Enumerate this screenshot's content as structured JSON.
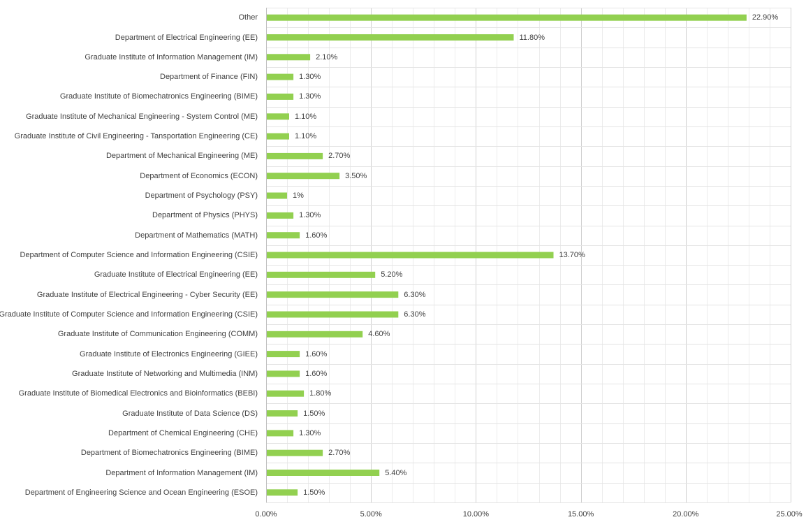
{
  "chart_data": {
    "type": "bar",
    "orientation": "horizontal",
    "title": "",
    "xlabel": "",
    "ylabel": "",
    "xlim": [
      0,
      25
    ],
    "x_ticks": [
      "0.00%",
      "5.00%",
      "10.00%",
      "15.00%",
      "20.00%",
      "25.00%"
    ],
    "grid": true,
    "legend": "none",
    "bar_color": "#92d050",
    "categories": [
      "Other",
      "Department of Electrical Engineering (EE)",
      "Graduate Institute of Information Management (IM)",
      "Department of Finance (FIN)",
      "Graduate Institute of Biomechatronics Engineering (BIME)",
      "Graduate Institute of Mechanical Engineering - System Control (ME)",
      "Graduate Institute of Civil Engineering - Tansportation Engineering (CE)",
      "Department of Mechanical Engineering (ME)",
      "Department of Economics (ECON)",
      "Department of Psychology (PSY)",
      "Department of Physics (PHYS)",
      "Department of Mathematics (MATH)",
      "Department of Computer Science and Information Engineering (CSIE)",
      "Graduate Institute of Electrical Engineering (EE)",
      "Graduate Institute of Electrical Engineering - Cyber Security (EE)",
      "Graduate Institute of Computer Science and Information Engineering (CSIE)",
      "Graduate Institute of Communication Engineering (COMM)",
      "Graduate Institute of Electronics Engineering (GIEE)",
      "Graduate Institute of Networking and Multimedia (INM)",
      "Graduate Institute of Biomedical Electronics and Bioinformatics (BEBI)",
      "Graduate Institute of Data Science (DS)",
      "Department of Chemical Engineering (CHE)",
      "Department of Biomechatronics Engineering (BIME)",
      "Department of Information Management (IM)",
      "Department of Engineering Science and Ocean Engineering (ESOE)"
    ],
    "values": [
      22.9,
      11.8,
      2.1,
      1.3,
      1.3,
      1.1,
      1.1,
      2.7,
      3.5,
      1.0,
      1.3,
      1.6,
      13.7,
      5.2,
      6.3,
      6.3,
      4.6,
      1.6,
      1.6,
      1.8,
      1.5,
      1.3,
      2.7,
      5.4,
      1.5
    ],
    "value_labels": [
      "22.90%",
      "11.80%",
      "2.10%",
      "1.30%",
      "1.30%",
      "1.10%",
      "1.10%",
      "2.70%",
      "3.50%",
      "1%",
      "1.30%",
      "1.60%",
      "13.70%",
      "5.20%",
      "6.30%",
      "6.30%",
      "4.60%",
      "1.60%",
      "1.60%",
      "1.80%",
      "1.50%",
      "1.30%",
      "2.70%",
      "5.40%",
      "1.50%"
    ]
  }
}
